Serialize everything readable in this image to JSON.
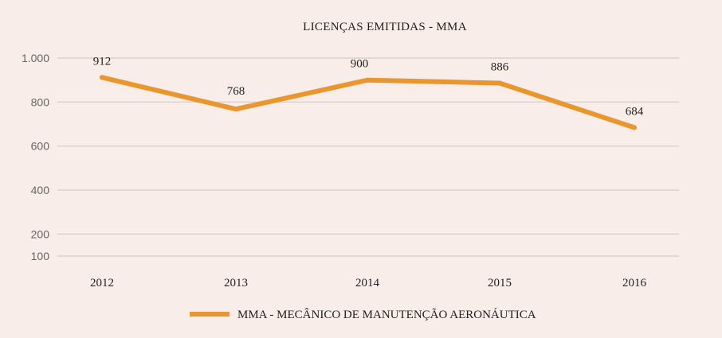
{
  "chart_data": {
    "type": "line",
    "title": "LICENÇAS EMITIDAS - MMA",
    "categories": [
      "2012",
      "2013",
      "2014",
      "2015",
      "2016"
    ],
    "series": [
      {
        "name": "MMA - MECÂNICO DE MANUTENÇÃO AERONÁUTICA",
        "values": [
          912,
          768,
          900,
          886,
          684
        ],
        "labels": [
          "912",
          "768",
          "900",
          "886",
          "684"
        ],
        "color": "#e9962f"
      }
    ],
    "ylim": [
      100,
      1000
    ],
    "yticks": [
      1000,
      800,
      600,
      400,
      200,
      100
    ],
    "ytick_labels": [
      "1.000",
      "800",
      "600",
      "400",
      "200",
      "100"
    ],
    "grid": true,
    "legend_position": "bottom",
    "xlabel": "",
    "ylabel": ""
  }
}
